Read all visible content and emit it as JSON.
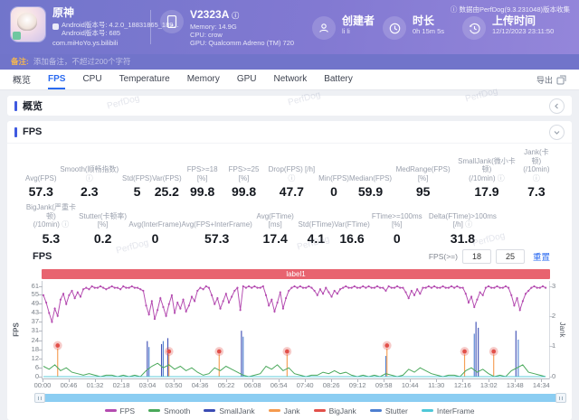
{
  "header": {
    "app": {
      "name": "原神",
      "version_line1": "Android版本号: 4.2.0_18831865_189...",
      "version_line2": "Android版本号: 685",
      "package": "com.miHoYo.ys.bilibili"
    },
    "device": {
      "name": "V2323A",
      "memory": "Memory: 14.9G",
      "cpu": "CPU: crow",
      "gpu": "GPU: Qualcomm Adreno (TM) 720"
    },
    "creator": {
      "label": "创建者",
      "value": "li li"
    },
    "duration": {
      "label": "时长",
      "value": "0h 15m 5s"
    },
    "upload": {
      "label": "上传时间",
      "value": "12/12/2023 23:11:50"
    },
    "source_note": "ⓘ 数据由PerfDog(9.3.231048)版本收集"
  },
  "note_bar": {
    "tag": "备注:",
    "placeholder": "添加备注，不超过200个字符"
  },
  "tabs": {
    "items": [
      {
        "label": "概览",
        "active": false
      },
      {
        "label": "FPS",
        "active": true
      },
      {
        "label": "CPU",
        "active": false
      },
      {
        "label": "Temperature",
        "active": false
      },
      {
        "label": "Memory",
        "active": false
      },
      {
        "label": "GPU",
        "active": false
      },
      {
        "label": "Network",
        "active": false
      },
      {
        "label": "Battery",
        "active": false
      }
    ],
    "export_label": "导出"
  },
  "sections": {
    "overview_title": "概览",
    "fps_title": "FPS"
  },
  "watermark": "PerfDog",
  "fps_stats": {
    "row1": [
      {
        "label": "Avg(FPS)",
        "value": "57.3",
        "info": false
      },
      {
        "label": "Smooth(顺畅指数)",
        "value": "2.3",
        "info": true
      },
      {
        "label": "Std(FPS)",
        "value": "5",
        "info": false
      },
      {
        "label": "Var(FPS)",
        "value": "25.2",
        "info": false
      },
      {
        "label": "FPS>=18 [%]",
        "value": "99.8",
        "info": false
      },
      {
        "label": "FPS>=25 [%]",
        "value": "99.8",
        "info": false
      },
      {
        "label": "Drop(FPS) [/h]",
        "value": "47.7",
        "info": true
      },
      {
        "label": "Min(FPS)",
        "value": "0",
        "info": false
      },
      {
        "label": "Median(FPS)",
        "value": "59.9",
        "info": false
      },
      {
        "label": "MedRange(FPS)[%]",
        "value": "95",
        "info": false
      },
      {
        "label": "SmallJank(微小卡顿)\n(/10min)",
        "value": "17.9",
        "info": true
      },
      {
        "label": "Jank(卡顿)\n(/10min)",
        "value": "7.3",
        "info": true
      }
    ],
    "row2": [
      {
        "label": "BigJank(严重卡顿)\n(/10min)",
        "value": "5.3",
        "info": true
      },
      {
        "label": "Stutter(卡顿率) [%]",
        "value": "0.2",
        "info": false
      },
      {
        "label": "Avg(InterFrame)",
        "value": "0",
        "info": false
      },
      {
        "label": "Avg(FPS+InterFrame)",
        "value": "57.3",
        "info": false
      },
      {
        "label": "Avg(FTime) [ms]",
        "value": "17.4",
        "info": false
      },
      {
        "label": "Std(FTime)",
        "value": "4.1",
        "info": false
      },
      {
        "label": "Var(FTime)",
        "value": "16.6",
        "info": false
      },
      {
        "label": "FTime>=100ms [%]",
        "value": "0",
        "info": false
      },
      {
        "label": "Delta(FTime)>100ms [/h]",
        "value": "31.8",
        "info": true
      }
    ]
  },
  "fps_chart": {
    "title": "FPS",
    "threshold_label": "FPS(>=)",
    "thresholds": [
      "18",
      "25"
    ],
    "reset_label": "重置",
    "band_label": "label1",
    "chart_data": {
      "type": "line",
      "title": "FPS",
      "ylabel": "FPS",
      "ylabel_right": "Jank",
      "y_max": 61,
      "y_right_max": 3,
      "t_max": 880,
      "yticks": [
        0,
        6,
        12,
        18,
        24,
        31,
        37,
        43,
        49,
        55,
        61
      ],
      "yticks_right": [
        0,
        1,
        2,
        3
      ],
      "xtick_interval_s": 46,
      "xticks": [
        "00:00",
        "00:46",
        "01:32",
        "02:18",
        "03:04",
        "03:50",
        "04:36",
        "05:22",
        "06:08",
        "06:54",
        "07:40",
        "08:26",
        "09:12",
        "09:58",
        "10:44",
        "11:30",
        "12:16",
        "13:02",
        "13:48",
        "14:34"
      ],
      "series": [
        {
          "name": "FPS",
          "color": "#b44bb0",
          "dt": 5,
          "markers": true,
          "values": [
            55,
            50,
            43,
            37,
            46,
            41,
            52,
            56,
            49,
            55,
            58,
            53,
            57,
            54,
            59,
            60,
            59,
            61,
            60,
            60,
            61,
            60,
            59,
            60,
            61,
            60,
            60,
            59,
            61,
            60,
            60,
            61,
            60,
            60,
            59,
            58,
            48,
            42,
            51,
            39,
            45,
            53,
            47,
            41,
            49,
            55,
            43,
            50,
            46,
            52,
            44,
            48,
            54,
            51,
            58,
            60,
            59,
            61,
            60,
            55,
            49,
            53,
            46,
            51,
            56,
            50,
            54,
            58,
            60,
            45,
            61,
            60,
            61,
            60,
            61,
            60,
            60,
            61,
            55,
            48,
            52,
            44,
            50,
            57,
            46,
            53,
            58,
            60,
            61,
            60,
            61,
            60,
            60,
            61,
            60,
            58,
            55,
            59,
            56,
            60,
            57,
            54,
            58,
            56,
            59,
            60,
            61,
            60,
            60,
            61,
            60,
            60,
            61,
            60,
            61,
            60,
            60,
            61,
            60,
            60,
            58,
            61,
            60,
            60,
            61,
            60,
            60,
            57,
            53,
            58,
            55,
            59,
            56,
            60,
            60,
            61,
            60,
            61,
            60,
            60,
            61,
            60,
            60,
            61,
            60,
            61,
            60,
            60,
            56,
            50,
            54,
            47,
            52,
            57,
            55,
            60,
            61,
            60,
            60,
            61,
            60,
            60,
            61,
            60,
            55,
            48,
            53,
            45,
            51,
            56,
            58,
            60,
            61,
            60,
            60,
            61,
            60
          ]
        },
        {
          "name": "Smooth",
          "color": "#49a85a",
          "dt": 10,
          "markers": false,
          "values": [
            7,
            5,
            8,
            4,
            6,
            3,
            2,
            1,
            2,
            1,
            0,
            1,
            1,
            0,
            1,
            0,
            1,
            0,
            4,
            7,
            9,
            6,
            8,
            5,
            7,
            4,
            6,
            3,
            1,
            2,
            6,
            4,
            7,
            5,
            3,
            1,
            0,
            1,
            2,
            7,
            5,
            8,
            4,
            6,
            2,
            1,
            0,
            1,
            1,
            3,
            2,
            4,
            2,
            3,
            1,
            0,
            1,
            0,
            1,
            0,
            2,
            1,
            0,
            1,
            5,
            3,
            6,
            4,
            2,
            1,
            0,
            1,
            1,
            0,
            4,
            6,
            3,
            5,
            2,
            0,
            1,
            0,
            4,
            6,
            8,
            3,
            2,
            1,
            0
          ]
        },
        {
          "name": "InterFrame",
          "color": "#4fc8d8",
          "flat": 0
        }
      ],
      "events": [
        {
          "name": "SmallJank",
          "color": "#3a4bb3",
          "marker": "impulse",
          "points": [
            [
              182,
              24
            ],
            [
              207,
              22
            ],
            [
              218,
              26
            ],
            [
              347,
              31
            ],
            [
              758,
              37
            ],
            [
              762,
              33
            ],
            [
              828,
              31
            ]
          ]
        },
        {
          "name": "Stutter",
          "color": "#4d7fd0",
          "marker": "impulse",
          "points": [
            [
              185,
              20
            ],
            [
              210,
              24
            ],
            [
              350,
              27
            ],
            [
              600,
              14
            ],
            [
              755,
              29
            ],
            [
              832,
              25
            ]
          ]
        },
        {
          "name": "Jank",
          "color": "#f59a4e",
          "marker": "impulse",
          "points": [
            [
              25,
              19
            ],
            [
              220,
              15
            ],
            [
              308,
              15
            ],
            [
              427,
              15
            ],
            [
              602,
              19
            ],
            [
              738,
              15
            ],
            [
              789,
              15
            ]
          ]
        },
        {
          "name": "BigJank",
          "color": "#e2504a",
          "marker": "dot",
          "points": [
            [
              25,
              21
            ],
            [
              220,
              17
            ],
            [
              308,
              17
            ],
            [
              427,
              17
            ],
            [
              602,
              21
            ],
            [
              738,
              17
            ],
            [
              789,
              17
            ]
          ]
        }
      ],
      "legend": [
        {
          "name": "FPS",
          "color": "#b44bb0"
        },
        {
          "name": "Smooth",
          "color": "#49a85a"
        },
        {
          "name": "SmallJank",
          "color": "#3a4bb3"
        },
        {
          "name": "Jank",
          "color": "#f59a4e"
        },
        {
          "name": "BigJank",
          "color": "#e2504a"
        },
        {
          "name": "Stutter",
          "color": "#4d7fd0"
        },
        {
          "name": "InterFrame",
          "color": "#4fc8d8"
        }
      ]
    }
  }
}
